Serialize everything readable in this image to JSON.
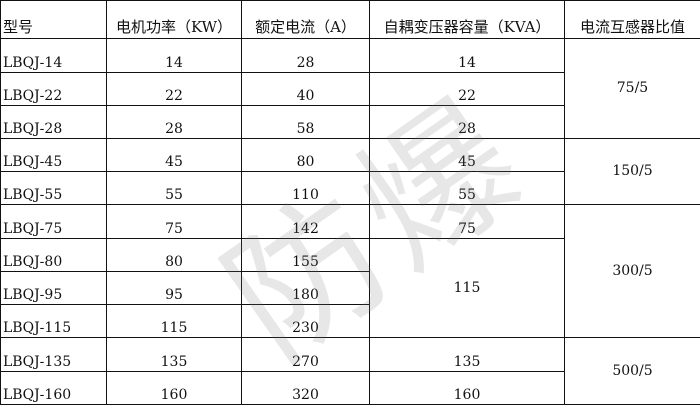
{
  "headers": [
    "型号",
    "电机功率（KW）",
    "额定电流（A）",
    "自耦变压器容量（KVA）",
    "电流互感器比值"
  ],
  "rows": [
    {
      "model": "LBQJ-14",
      "power": "14",
      "current": "28",
      "kva": "14"
    },
    {
      "model": "LBQJ-22",
      "power": "22",
      "current": "40",
      "kva": "22"
    },
    {
      "model": "LBQJ-28",
      "power": "28",
      "current": "58",
      "kva": "28"
    },
    {
      "model": "LBQJ-45",
      "power": "45",
      "current": "80",
      "kva": "45"
    },
    {
      "model": "LBQJ-55",
      "power": "55",
      "current": "110",
      "kva": "55"
    },
    {
      "model": "LBQJ-75",
      "power": "75",
      "current": "142",
      "kva": "75"
    },
    {
      "model": "LBQJ-80",
      "power": "80",
      "current": "155",
      "kva": "115"
    },
    {
      "model": "LBQJ-95",
      "power": "95",
      "current": "180"
    },
    {
      "model": "LBQJ-115",
      "power": "115",
      "current": "230"
    },
    {
      "model": "LBQJ-135",
      "power": "135",
      "current": "270",
      "kva": "135"
    },
    {
      "model": "LBQJ-160",
      "power": "160",
      "current": "320",
      "kva": "160"
    }
  ],
  "ratios": [
    "75/5",
    "150/5",
    "300/5",
    "500/5"
  ],
  "watermark": "防爆"
}
